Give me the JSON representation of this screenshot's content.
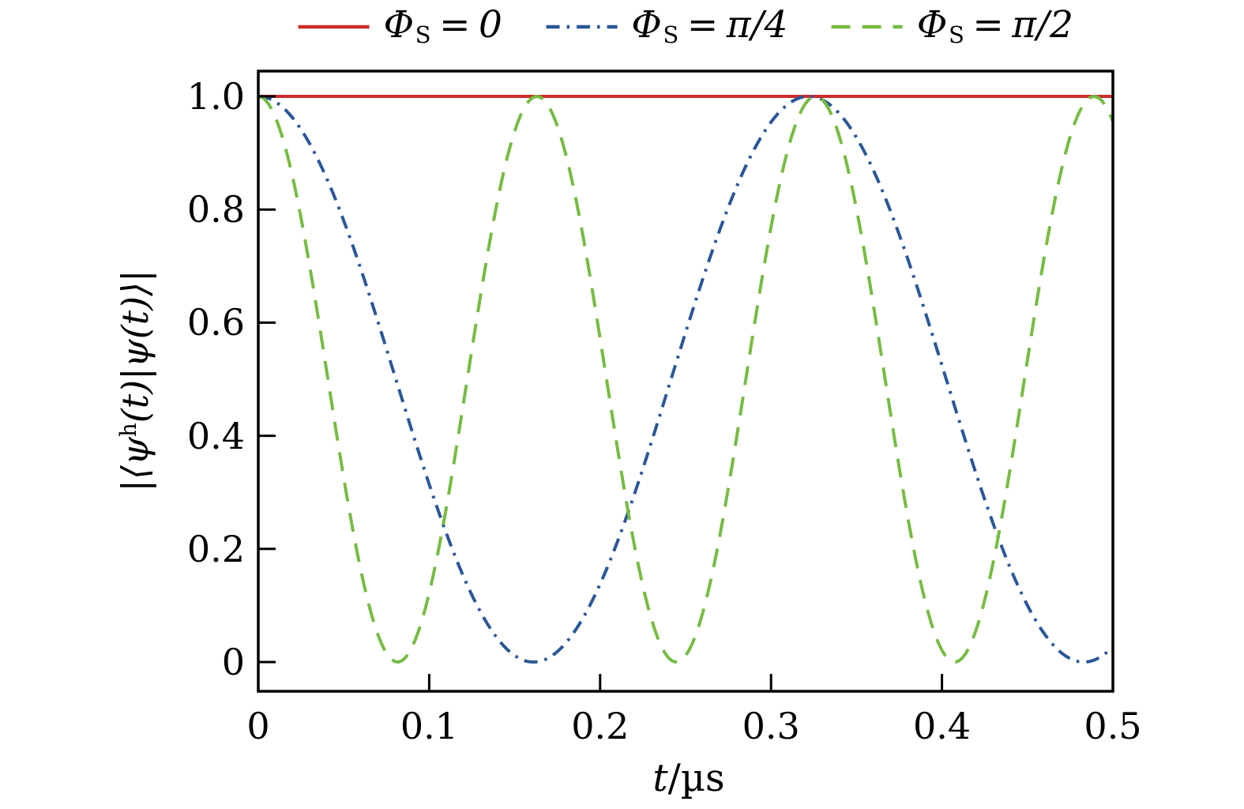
{
  "figure": {
    "background": "#ffffff",
    "text_color": "#000000",
    "frame_color": "#000000"
  },
  "legend": {
    "position": "top-center",
    "items": [
      {
        "symbol": "Φ",
        "subscript": "S",
        "eq": "=",
        "value": "0",
        "color": "#ce2c2c",
        "line_style": "solid"
      },
      {
        "symbol": "Φ",
        "subscript": "S",
        "eq": "=",
        "value": "π/4",
        "color": "#2b5797",
        "line_style": "dashdot"
      },
      {
        "symbol": "Φ",
        "subscript": "S",
        "eq": "=",
        "value": "π/2",
        "color": "#77bb44",
        "line_style": "dashed"
      }
    ]
  },
  "axes": {
    "xlabel": {
      "var": "t",
      "rest": "/µs"
    },
    "ylabel": {
      "pre": "|⟨ψ",
      "sup": "h",
      "post": "(t)|ψ(t)⟩|"
    }
  },
  "chart_data": {
    "type": "line",
    "title": "",
    "xlabel": "t/µs",
    "ylabel": "|⟨ψ^h(t)|ψ(t)⟩|",
    "xlim": [
      0,
      0.5
    ],
    "ylim": [
      -0.052,
      1.045
    ],
    "grid": false,
    "legend_position": "top",
    "x_ticks": [
      {
        "value": 0,
        "label": "0"
      },
      {
        "value": 0.1,
        "label": "0.1"
      },
      {
        "value": 0.2,
        "label": "0.2"
      },
      {
        "value": 0.3,
        "label": "0.3"
      },
      {
        "value": 0.4,
        "label": "0.4"
      },
      {
        "value": 0.5,
        "label": "0.5"
      }
    ],
    "y_ticks": [
      {
        "value": 0,
        "label": "0"
      },
      {
        "value": 0.2,
        "label": "0.2"
      },
      {
        "value": 0.4,
        "label": "0.4"
      },
      {
        "value": 0.6,
        "label": "0.6"
      },
      {
        "value": 0.8,
        "label": "0.8"
      },
      {
        "value": 1.0,
        "label": "1.0"
      }
    ],
    "sample_step_us": 0.002,
    "series": [
      {
        "name": "Φ_S = 0",
        "color": "#ce2c2c",
        "line_style": "solid",
        "model": "constant",
        "value": 1.0
      },
      {
        "name": "Φ_S = π/4",
        "color": "#2b5797",
        "line_style": "dashdot",
        "model": "cos_squared",
        "amplitude": 1.0,
        "period_us": 0.322,
        "start_value": 1.0,
        "zeros_at_us": [
          0.161,
          0.483
        ],
        "maxima_at_us": [
          0,
          0.322
        ],
        "value_at_end": 0.027
      },
      {
        "name": "Φ_S = π/2",
        "color": "#77bb44",
        "line_style": "dashed",
        "model": "cos_squared",
        "amplitude": 1.0,
        "period_us": 0.163,
        "start_value": 1.0,
        "zeros_at_us": [
          0.0815,
          0.2445,
          0.4075
        ],
        "maxima_at_us": [
          0,
          0.163,
          0.326,
          0.489
        ],
        "value_at_end": 0.956
      }
    ]
  }
}
